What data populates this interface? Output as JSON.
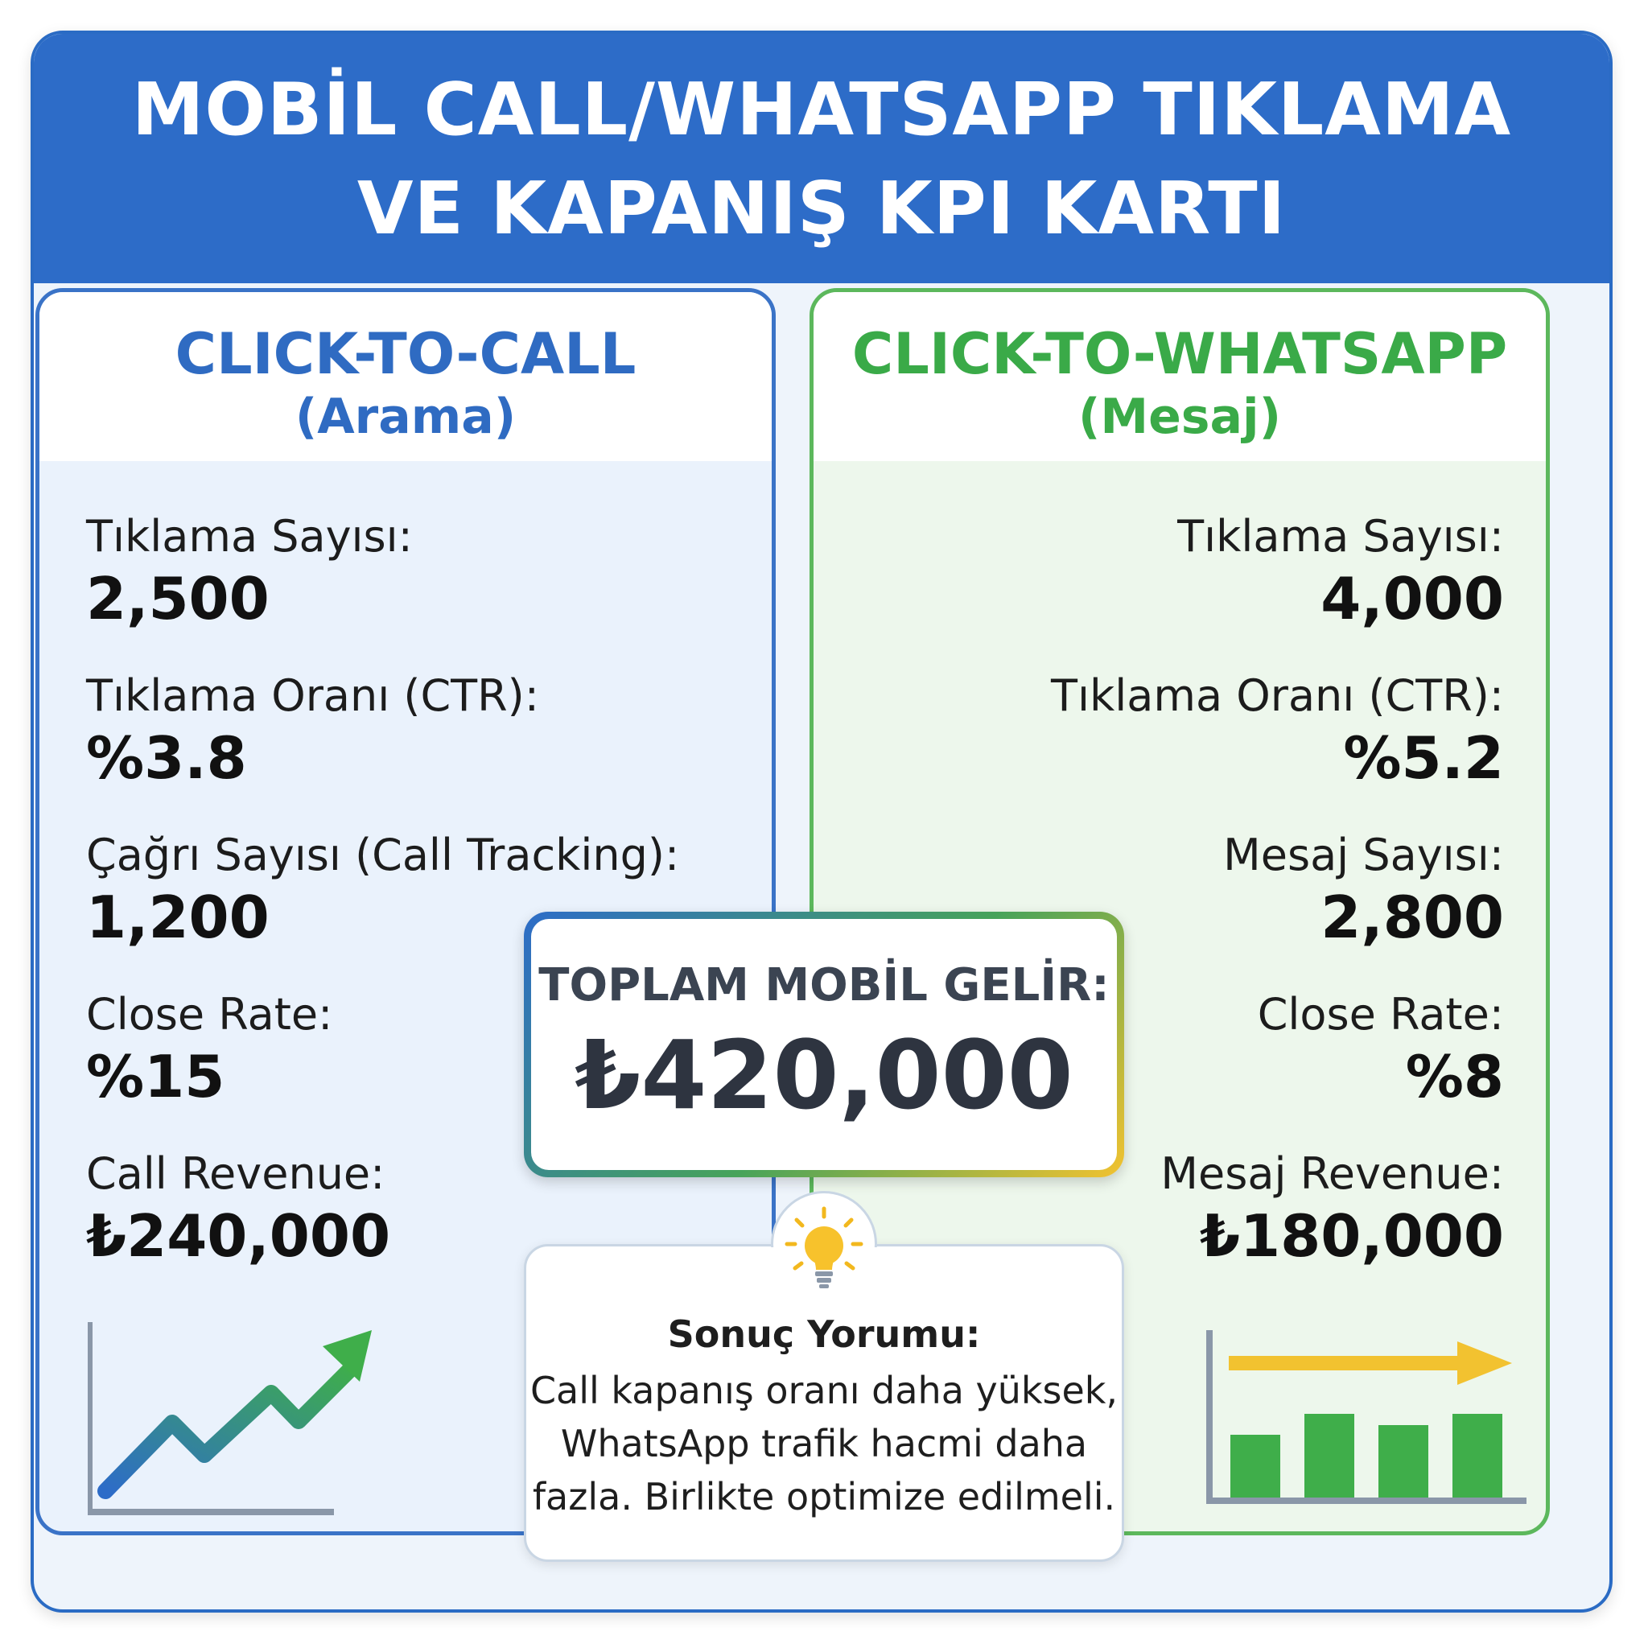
{
  "header": {
    "title_line1": "MOBİL CALL/WHATSAPP TIKLAMA",
    "title_line2": "VE KAPANIŞ KPI KARTI"
  },
  "call_panel": {
    "title": "CLICK-TO-CALL",
    "subtitle": "(Arama)",
    "metrics": [
      {
        "label": "Tıklama Sayısı:",
        "value": "2,500"
      },
      {
        "label": "Tıklama Oranı (CTR):",
        "value": "%3.8"
      },
      {
        "label": "Çağrı Sayısı (Call Tracking):",
        "value": "1,200"
      },
      {
        "label": "Close Rate:",
        "value": "%15"
      },
      {
        "label": "Call Revenue:",
        "value": "₺240,000"
      }
    ],
    "icon": "trend-up-line-chart-icon"
  },
  "whatsapp_panel": {
    "title": "CLICK-TO-WHATSAPP",
    "subtitle": "(Mesaj)",
    "metrics": [
      {
        "label": "Tıklama Sayısı:",
        "value": "4,000"
      },
      {
        "label": "Tıklama Oranı (CTR):",
        "value": "%5.2"
      },
      {
        "label": "Mesaj Sayısı:",
        "value": "2,800"
      },
      {
        "label": "Close Rate:",
        "value": "%8"
      },
      {
        "label": "Mesaj Revenue:",
        "value": "₺180,000"
      }
    ],
    "icon": "bar-chart-arrow-icon"
  },
  "total": {
    "label": "TOPLAM MOBİL GELİR:",
    "value": "₺420,000"
  },
  "note": {
    "icon": "lightbulb-icon",
    "title": "Sonuç Yorumu:",
    "line1": "Call kapanış oranı daha yüksek,",
    "line2": "WhatsApp trafik hacmi daha",
    "line3": "fazla. Birlikte optimize edilmeli."
  },
  "colors": {
    "header_blue": "#2d6cc8",
    "call_blue": "#2f6bc2",
    "whatsapp_green": "#3aaa48",
    "accent_yellow": "#f2c230"
  }
}
